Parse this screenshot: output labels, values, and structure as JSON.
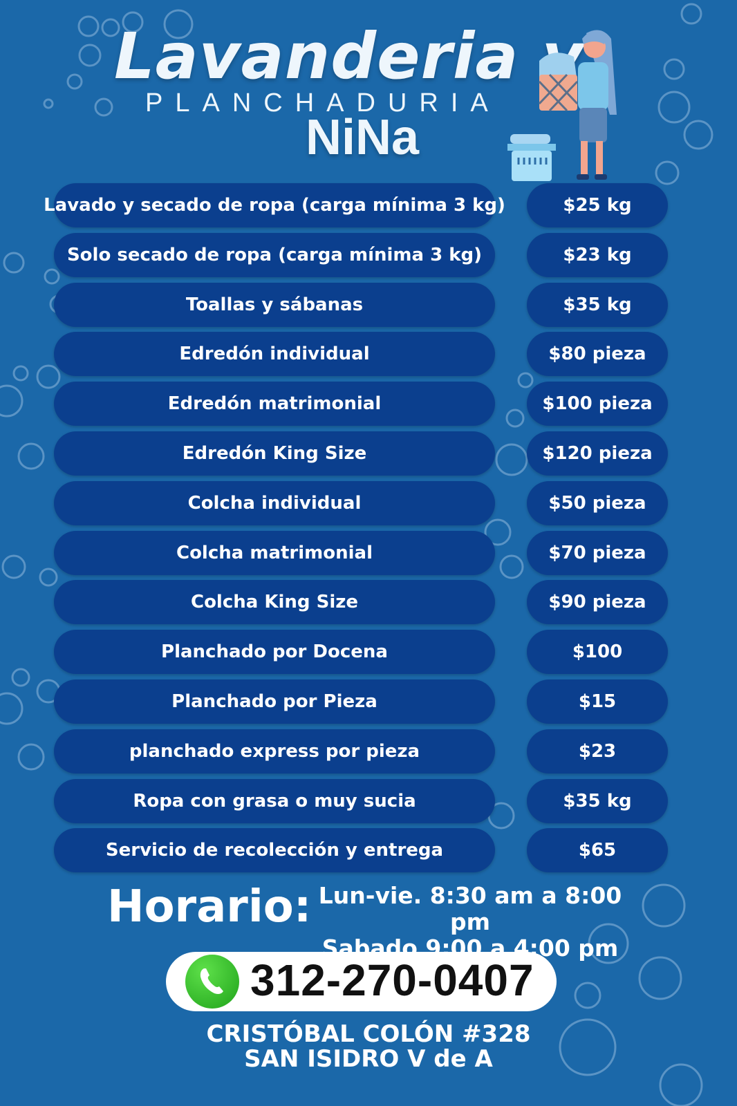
{
  "header": {
    "title_line1": "Lavanderia y",
    "title_line2": "PLANCHADURIA",
    "title_line3": "NiNa"
  },
  "services": [
    {
      "name": "Lavado y secado de ropa (carga mínima 3 kg)",
      "price": "$25 kg"
    },
    {
      "name": "Solo secado de ropa (carga mínima 3 kg)",
      "price": "$23 kg"
    },
    {
      "name": "Toallas y sábanas",
      "price": "$35 kg"
    },
    {
      "name": "Edredón individual",
      "price": "$80 pieza"
    },
    {
      "name": "Edredón matrimonial",
      "price": "$100 pieza"
    },
    {
      "name": "Edredón King Size",
      "price": "$120 pieza"
    },
    {
      "name": "Colcha individual",
      "price": "$50 pieza"
    },
    {
      "name": "Colcha matrimonial",
      "price": "$70 pieza"
    },
    {
      "name": "Colcha King Size",
      "price": "$90 pieza"
    },
    {
      "name": "Planchado  por Docena",
      "price": "$100"
    },
    {
      "name": "Planchado por Pieza",
      "price": "$15"
    },
    {
      "name": "planchado express por pieza",
      "price": "$23"
    },
    {
      "name": "Ropa con grasa o muy sucia",
      "price": "$35 kg"
    },
    {
      "name": "Servicio de recolección y entrega",
      "price": "$65"
    }
  ],
  "schedule": {
    "label": "Horario:",
    "weekdays": "Lun-vie.  8:30 am a 8:00 pm",
    "saturday": "Sabado 9:00 a 4:00 pm"
  },
  "contact": {
    "phone": "312-270-0407",
    "phone_icon": "whatsapp-phone-icon"
  },
  "address": {
    "line1": "CRISTÓBAL COLÓN #328",
    "line2": "SAN  ISIDRO  V de A"
  },
  "colors": {
    "background": "#1b68a9",
    "pill": "#0b3f8e",
    "text": "#ffffff",
    "phone_green": "#2fbf25"
  }
}
